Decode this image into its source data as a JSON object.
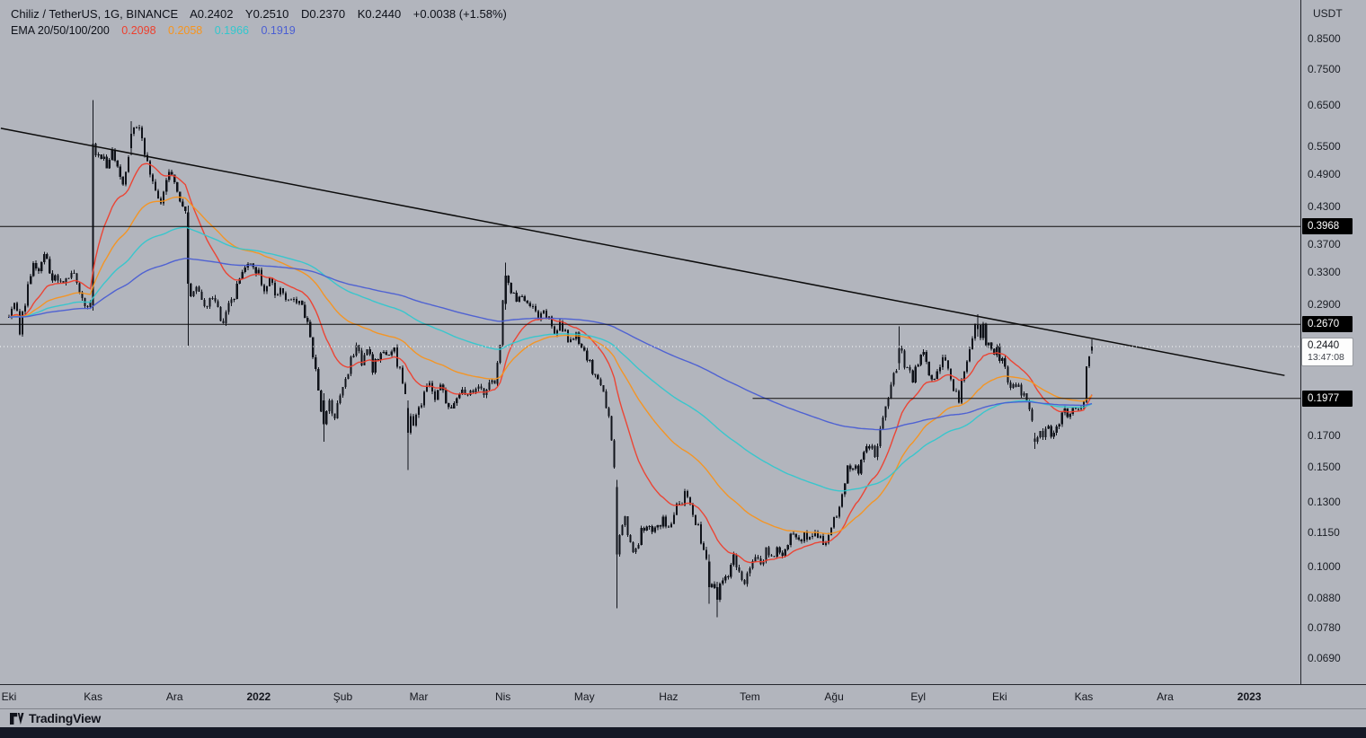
{
  "header": {
    "symbol_line": {
      "symbol": "Chiliz / TetherUS, 1G, BINANCE",
      "open_label": "A",
      "open": "0.2402",
      "high_label": "Y",
      "high": "0.2510",
      "low_label": "D",
      "low": "0.2370",
      "close_label": "K",
      "close": "0.2440",
      "change": "+0.0038 (+1.58%)"
    },
    "ema_line": {
      "label": "EMA 20/50/100/200",
      "values": [
        {
          "period": 20,
          "value": "0.2098",
          "color": "#ee3f2d"
        },
        {
          "period": 50,
          "value": "0.2058",
          "color": "#f7941d"
        },
        {
          "period": 100,
          "value": "0.1966",
          "color": "#33c7cd"
        },
        {
          "period": 200,
          "value": "0.1919",
          "color": "#4a5ed3"
        }
      ]
    }
  },
  "price_axis": {
    "currency": "USDT",
    "ticks": [
      "0.8500",
      "0.7500",
      "0.6500",
      "0.5500",
      "0.4900",
      "0.4300",
      "0.3700",
      "0.3300",
      "0.2900",
      "0.1700",
      "0.1500",
      "0.1300",
      "0.1150",
      "0.1000",
      "0.0880",
      "0.0780",
      "0.0690"
    ],
    "levels": [
      {
        "price": "0.3968"
      },
      {
        "price": "0.2670"
      },
      {
        "price": "0.1977"
      }
    ],
    "current": {
      "price": "0.2440",
      "countdown": "13:47:08"
    }
  },
  "time_axis": {
    "labels": [
      {
        "text": "Eki",
        "day": 0
      },
      {
        "text": "Kas",
        "day": 31
      },
      {
        "text": "Ara",
        "day": 61
      },
      {
        "text": "2022",
        "day": 92,
        "bold": true
      },
      {
        "text": "Şub",
        "day": 123
      },
      {
        "text": "Mar",
        "day": 151
      },
      {
        "text": "Nis",
        "day": 182
      },
      {
        "text": "May",
        "day": 212
      },
      {
        "text": "Haz",
        "day": 243
      },
      {
        "text": "Tem",
        "day": 273
      },
      {
        "text": "Ağu",
        "day": 304
      },
      {
        "text": "Eyl",
        "day": 335
      },
      {
        "text": "Eki",
        "day": 365
      },
      {
        "text": "Kas",
        "day": 396
      },
      {
        "text": "Ara",
        "day": 426
      },
      {
        "text": "2023",
        "day": 457,
        "bold": true
      }
    ]
  },
  "footer": {
    "brand": "TradingView"
  },
  "chart_data": {
    "type": "candlestick",
    "title": "Chiliz / TetherUS, 1G, BINANCE",
    "symbol": "CHZ/USDT",
    "timeframe": "1G",
    "num_candles": 400,
    "candle_color": "#10131a",
    "y_axis": {
      "type": "log",
      "range": [
        0.0621,
        0.994
      ],
      "ticks": [
        0.85,
        0.75,
        0.65,
        0.55,
        0.49,
        0.43,
        0.3968,
        0.37,
        0.33,
        0.29,
        0.267,
        0.244,
        0.1977,
        0.17,
        0.15,
        0.13,
        0.115,
        0.1,
        0.088,
        0.078,
        0.069
      ]
    },
    "anchors": [
      [
        0,
        0.275
      ],
      [
        2,
        0.295
      ],
      [
        4,
        0.262
      ],
      [
        6,
        0.292
      ],
      [
        9,
        0.345
      ],
      [
        11,
        0.328
      ],
      [
        13,
        0.356
      ],
      [
        15,
        0.33
      ],
      [
        18,
        0.314
      ],
      [
        21,
        0.326
      ],
      [
        24,
        0.332
      ],
      [
        27,
        0.298
      ],
      [
        29,
        0.282
      ],
      [
        30,
        0.29
      ],
      [
        32,
        0.52
      ],
      [
        34,
        0.53
      ],
      [
        36,
        0.502
      ],
      [
        38,
        0.532
      ],
      [
        40,
        0.498
      ],
      [
        42,
        0.468
      ],
      [
        44,
        0.52
      ],
      [
        46,
        0.585
      ],
      [
        48,
        0.59
      ],
      [
        50,
        0.525
      ],
      [
        52,
        0.488
      ],
      [
        54,
        0.455
      ],
      [
        56,
        0.44
      ],
      [
        58,
        0.478
      ],
      [
        60,
        0.498
      ],
      [
        62,
        0.452
      ],
      [
        64,
        0.432
      ],
      [
        65,
        0.42
      ],
      [
        67,
        0.3
      ],
      [
        69,
        0.316
      ],
      [
        71,
        0.3
      ],
      [
        73,
        0.286
      ],
      [
        75,
        0.3
      ],
      [
        77,
        0.284
      ],
      [
        79,
        0.27
      ],
      [
        81,
        0.29
      ],
      [
        83,
        0.302
      ],
      [
        85,
        0.316
      ],
      [
        87,
        0.332
      ],
      [
        88,
        0.345
      ],
      [
        90,
        0.336
      ],
      [
        92,
        0.328
      ],
      [
        94,
        0.31
      ],
      [
        96,
        0.32
      ],
      [
        98,
        0.3
      ],
      [
        100,
        0.312
      ],
      [
        102,
        0.296
      ],
      [
        104,
        0.302
      ],
      [
        106,
        0.286
      ],
      [
        108,
        0.292
      ],
      [
        110,
        0.268
      ],
      [
        112,
        0.238
      ],
      [
        114,
        0.205
      ],
      [
        115,
        0.19
      ],
      [
        118,
        0.192
      ],
      [
        120,
        0.185
      ],
      [
        122,
        0.196
      ],
      [
        124,
        0.212
      ],
      [
        126,
        0.23
      ],
      [
        128,
        0.244
      ],
      [
        130,
        0.229
      ],
      [
        132,
        0.241
      ],
      [
        134,
        0.224
      ],
      [
        136,
        0.231
      ],
      [
        138,
        0.244
      ],
      [
        140,
        0.234
      ],
      [
        142,
        0.238
      ],
      [
        144,
        0.222
      ],
      [
        145,
        0.21
      ],
      [
        146,
        0.198
      ],
      [
        149,
        0.18
      ],
      [
        151,
        0.19
      ],
      [
        153,
        0.2
      ],
      [
        155,
        0.207
      ],
      [
        157,
        0.196
      ],
      [
        159,
        0.205
      ],
      [
        161,
        0.197
      ],
      [
        163,
        0.19
      ],
      [
        165,
        0.2
      ],
      [
        167,
        0.206
      ],
      [
        169,
        0.198
      ],
      [
        171,
        0.205
      ],
      [
        173,
        0.211
      ],
      [
        175,
        0.204
      ],
      [
        177,
        0.208
      ],
      [
        179,
        0.21
      ],
      [
        181,
        0.25
      ],
      [
        182,
        0.29
      ],
      [
        184,
        0.318
      ],
      [
        185,
        0.3
      ],
      [
        186,
        0.31
      ],
      [
        187,
        0.296
      ],
      [
        189,
        0.302
      ],
      [
        191,
        0.286
      ],
      [
        193,
        0.291
      ],
      [
        195,
        0.278
      ],
      [
        197,
        0.284
      ],
      [
        199,
        0.271
      ],
      [
        201,
        0.262
      ],
      [
        203,
        0.268
      ],
      [
        205,
        0.256
      ],
      [
        207,
        0.248
      ],
      [
        209,
        0.253
      ],
      [
        211,
        0.243
      ],
      [
        213,
        0.233
      ],
      [
        215,
        0.222
      ],
      [
        217,
        0.21
      ],
      [
        219,
        0.199
      ],
      [
        221,
        0.184
      ],
      [
        222,
        0.165
      ],
      [
        223,
        0.147
      ],
      [
        225,
        0.112
      ],
      [
        227,
        0.12
      ],
      [
        229,
        0.111
      ],
      [
        231,
        0.106
      ],
      [
        233,
        0.115
      ],
      [
        235,
        0.12
      ],
      [
        237,
        0.113
      ],
      [
        239,
        0.117
      ],
      [
        241,
        0.121
      ],
      [
        243,
        0.118
      ],
      [
        245,
        0.125
      ],
      [
        247,
        0.128
      ],
      [
        249,
        0.134
      ],
      [
        251,
        0.127
      ],
      [
        253,
        0.121
      ],
      [
        255,
        0.112
      ],
      [
        257,
        0.104
      ],
      [
        259,
        0.095
      ],
      [
        260,
        0.091
      ],
      [
        263,
        0.093
      ],
      [
        265,
        0.098
      ],
      [
        267,
        0.103
      ],
      [
        269,
        0.098
      ],
      [
        271,
        0.094
      ],
      [
        273,
        0.099
      ],
      [
        275,
        0.104
      ],
      [
        277,
        0.1
      ],
      [
        279,
        0.107
      ],
      [
        281,
        0.103
      ],
      [
        283,
        0.108
      ],
      [
        285,
        0.105
      ],
      [
        287,
        0.11
      ],
      [
        289,
        0.114
      ],
      [
        291,
        0.11
      ],
      [
        293,
        0.116
      ],
      [
        295,
        0.112
      ],
      [
        297,
        0.117
      ],
      [
        299,
        0.112
      ],
      [
        301,
        0.108
      ],
      [
        303,
        0.118
      ],
      [
        305,
        0.124
      ],
      [
        307,
        0.133
      ],
      [
        309,
        0.148
      ],
      [
        311,
        0.152
      ],
      [
        313,
        0.147
      ],
      [
        315,
        0.158
      ],
      [
        317,
        0.165
      ],
      [
        319,
        0.158
      ],
      [
        321,
        0.172
      ],
      [
        323,
        0.188
      ],
      [
        325,
        0.205
      ],
      [
        327,
        0.226
      ],
      [
        329,
        0.236
      ],
      [
        331,
        0.222
      ],
      [
        333,
        0.214
      ],
      [
        335,
        0.227
      ],
      [
        337,
        0.243
      ],
      [
        338,
        0.23
      ],
      [
        340,
        0.212
      ],
      [
        342,
        0.223
      ],
      [
        344,
        0.233
      ],
      [
        346,
        0.221
      ],
      [
        348,
        0.203
      ],
      [
        350,
        0.196
      ],
      [
        351,
        0.21
      ],
      [
        352,
        0.221
      ],
      [
        353,
        0.233
      ],
      [
        354,
        0.243
      ],
      [
        355,
        0.252
      ],
      [
        356,
        0.262
      ],
      [
        358,
        0.256
      ],
      [
        359,
        0.262
      ],
      [
        360,
        0.248
      ],
      [
        362,
        0.238
      ],
      [
        364,
        0.243
      ],
      [
        366,
        0.228
      ],
      [
        368,
        0.215
      ],
      [
        370,
        0.205
      ],
      [
        372,
        0.211
      ],
      [
        374,
        0.198
      ],
      [
        376,
        0.186
      ],
      [
        377,
        0.178
      ],
      [
        380,
        0.17
      ],
      [
        383,
        0.174
      ],
      [
        385,
        0.169
      ],
      [
        387,
        0.181
      ],
      [
        389,
        0.189
      ],
      [
        391,
        0.184
      ],
      [
        393,
        0.193
      ],
      [
        395,
        0.187
      ],
      [
        396,
        0.198
      ],
      [
        397,
        0.221
      ],
      [
        398,
        0.234
      ],
      [
        399,
        0.244
      ]
    ],
    "special_candles": [
      [
        31,
        0.288,
        0.662,
        0.282,
        0.555
      ],
      [
        45,
        0.545,
        0.608,
        0.53,
        0.578
      ],
      [
        66,
        0.42,
        0.432,
        0.245,
        0.315
      ],
      [
        116,
        0.196,
        0.202,
        0.166,
        0.178
      ],
      [
        147,
        0.19,
        0.196,
        0.148,
        0.172
      ],
      [
        183,
        0.29,
        0.343,
        0.283,
        0.325
      ],
      [
        224,
        0.138,
        0.142,
        0.0845,
        0.105
      ],
      [
        258,
        0.102,
        0.105,
        0.086,
        0.092
      ],
      [
        261,
        0.092,
        0.094,
        0.0815,
        0.0875
      ],
      [
        328,
        0.228,
        0.265,
        0.222,
        0.242
      ],
      [
        357,
        0.262,
        0.278,
        0.254,
        0.266
      ],
      [
        378,
        0.168,
        0.172,
        0.161,
        0.166
      ],
      [
        399,
        0.2402,
        0.251,
        0.237,
        0.244
      ]
    ],
    "emas": [
      {
        "period": 20,
        "color": "#ee3f2d",
        "last_value": 0.2098
      },
      {
        "period": 50,
        "color": "#f7941d",
        "last_value": 0.2058
      },
      {
        "period": 100,
        "color": "#33c7cd",
        "last_value": 0.1966
      },
      {
        "period": 200,
        "color": "#4a5ed3",
        "last_value": 0.1919
      }
    ],
    "levels": [
      {
        "price": 0.3968,
        "from_day": null
      },
      {
        "price": 0.267,
        "from_day": null
      },
      {
        "price": 0.1977,
        "from_day": 274
      }
    ],
    "trendline": {
      "d1": -3,
      "p1": 0.591,
      "d2": 470,
      "p2": 0.217
    },
    "current_price": 0.244
  }
}
